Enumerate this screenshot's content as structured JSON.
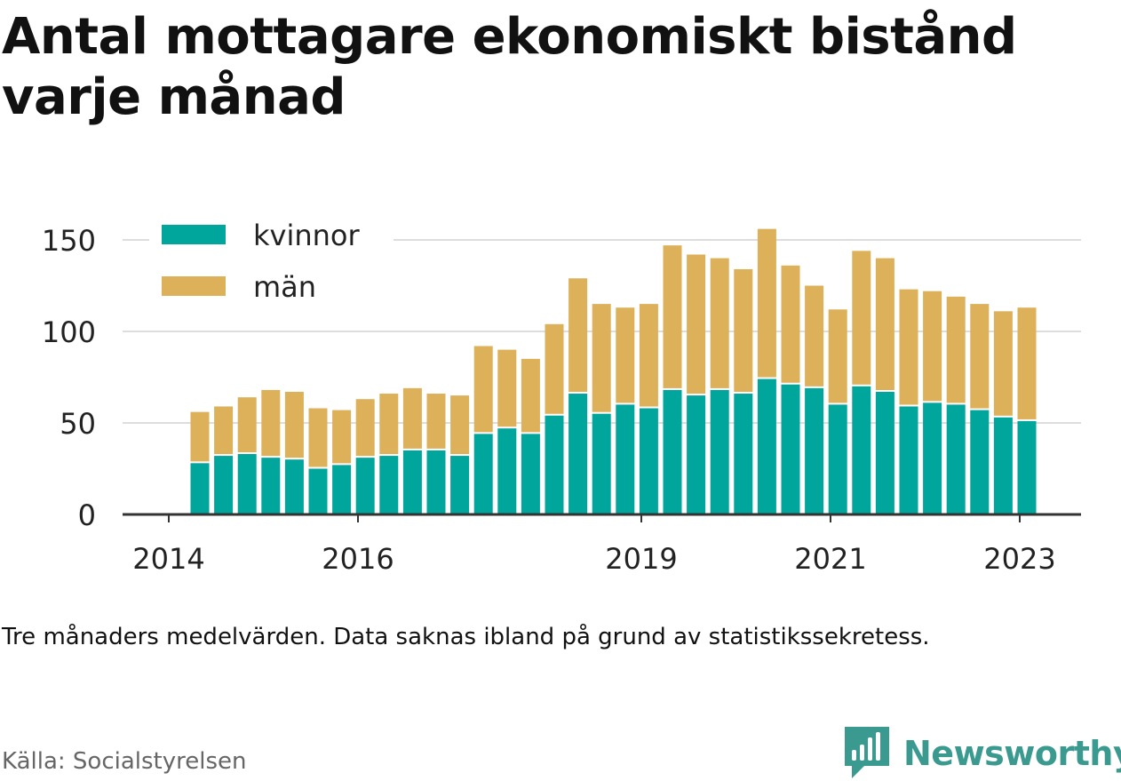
{
  "title": "Antal mottagare ekonomiskt bistånd varje månad",
  "note": "Tre månaders medelvärden. Data saknas ibland på grund av statistikssekretess.",
  "source": "Källa: Socialstyrelsen",
  "brand": "Newsworthy",
  "colors": {
    "kvinnor": "#00a59b",
    "man": "#ddb05a",
    "grid": "#dddddd",
    "axis": "#333333",
    "text": "#222222",
    "brand": "#3a9a8f"
  },
  "chart_data": {
    "type": "bar",
    "stacked": true,
    "x_axis_ticks": [
      "2014",
      "2016",
      "2019",
      "2021",
      "2023"
    ],
    "y_axis_ticks": [
      "0",
      "50",
      "100",
      "150"
    ],
    "ylim": [
      0,
      160
    ],
    "grid": true,
    "legend_position": "top-left",
    "series": [
      {
        "name": "kvinnor",
        "values": [
          28,
          32,
          33,
          31,
          30,
          25,
          27,
          31,
          32,
          35,
          35,
          32,
          44,
          47,
          44,
          54,
          66,
          55,
          60,
          58,
          68,
          65,
          68,
          66,
          74,
          71,
          69,
          60,
          70,
          67,
          59,
          61,
          60,
          57,
          53,
          51
        ]
      },
      {
        "name": "män",
        "values": [
          28,
          27,
          31,
          37,
          37,
          33,
          30,
          32,
          34,
          34,
          31,
          33,
          48,
          43,
          41,
          50,
          63,
          60,
          53,
          57,
          79,
          77,
          72,
          68,
          82,
          65,
          56,
          52,
          74,
          73,
          64,
          61,
          59,
          58,
          58,
          62
        ]
      }
    ]
  }
}
